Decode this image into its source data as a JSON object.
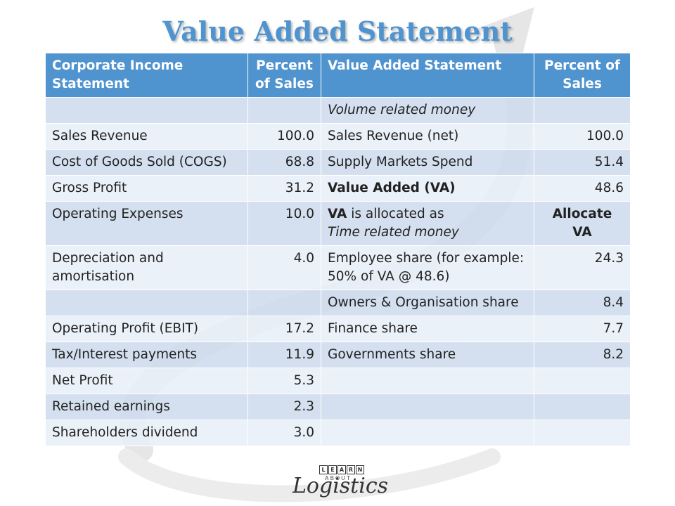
{
  "title": "Value Added Statement",
  "header": {
    "col1": "Corporate Income Statement",
    "col2": "Percent of Sales",
    "col3": "Value Added Statement",
    "col4": "Percent of Sales"
  },
  "rows": [
    {
      "c1": "",
      "c2": "",
      "c3": "Volume related money",
      "c4": ""
    },
    {
      "c1": "Sales Revenue",
      "c2": "100.0",
      "c3": "Sales Revenue (net)",
      "c4": "100.0"
    },
    {
      "c1": "Cost of Goods Sold (COGS)",
      "c2": "68.8",
      "c3": "Supply Markets Spend",
      "c4": "51.4"
    },
    {
      "c1": "Gross Profit",
      "c2": "31.2",
      "c3": "Value Added (VA)",
      "c4": "48.6"
    },
    {
      "c1": "Operating Expenses",
      "c2": "10.0",
      "c3a": "VA",
      "c3b": " is allocated as",
      "c3c": "Time related money",
      "c4": "Allocate VA"
    },
    {
      "c1": "Depreciation and amortisation",
      "c2": "4.0",
      "c3": "Employee share (for example: 50% of VA @ 48.6)",
      "c4": "24.3"
    },
    {
      "c1": "",
      "c2": "",
      "c3": "Owners & Organisation share",
      "c4": "8.4"
    },
    {
      "c1": "Operating Profit (EBIT)",
      "c2": "17.2",
      "c3": "Finance share",
      "c4": "7.7"
    },
    {
      "c1": "Tax/Interest payments",
      "c2": "11.9",
      "c3": "Governments share",
      "c4": "8.2"
    },
    {
      "c1": "Net Profit",
      "c2": "5.3",
      "c3": "",
      "c4": ""
    },
    {
      "c1": "Retained earnings",
      "c2": "2.3",
      "c3": "",
      "c4": ""
    },
    {
      "c1": "Shareholders dividend",
      "c2": "3.0",
      "c3": "",
      "c4": ""
    }
  ],
  "logo": {
    "learn": [
      "L",
      "E",
      "A",
      "R",
      "N"
    ],
    "about": "ABOUT",
    "script": "Logistics"
  },
  "colors": {
    "title": "#4f93cf",
    "header_bg": "#4f93cf",
    "row_odd": "#cddbec",
    "row_even": "#e8eef7"
  }
}
